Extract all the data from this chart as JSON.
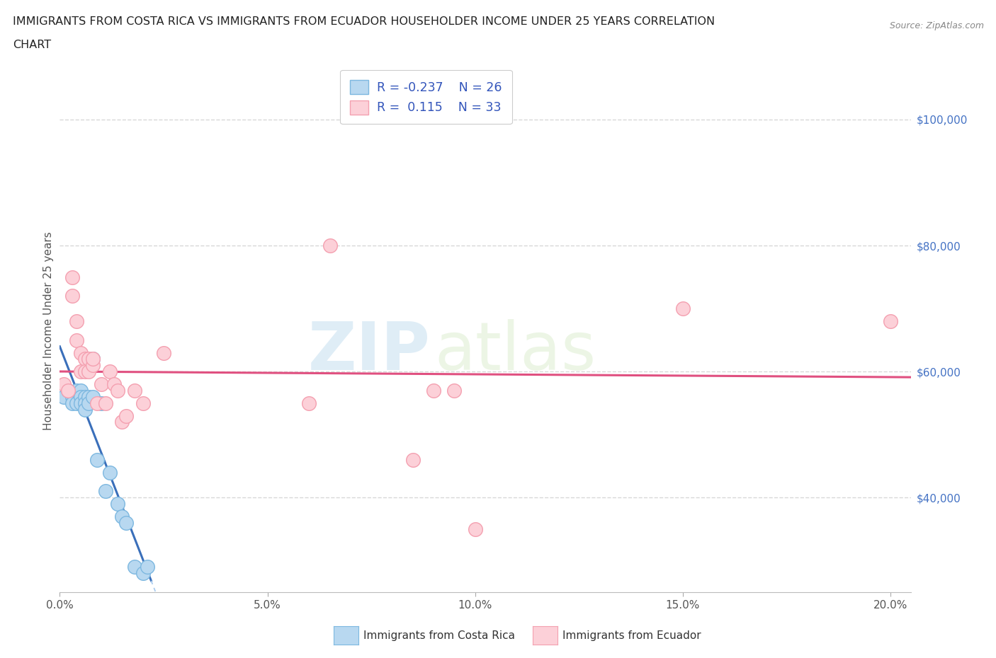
{
  "title_line1": "IMMIGRANTS FROM COSTA RICA VS IMMIGRANTS FROM ECUADOR HOUSEHOLDER INCOME UNDER 25 YEARS CORRELATION",
  "title_line2": "CHART",
  "source_text": "Source: ZipAtlas.com",
  "ylabel": "Householder Income Under 25 years",
  "legend_label_1": "Immigrants from Costa Rica",
  "legend_label_2": "Immigrants from Ecuador",
  "R1": -0.237,
  "N1": 26,
  "R2": 0.115,
  "N2": 33,
  "color_cr_edge": "#7db8e0",
  "color_ec_edge": "#f4a0b0",
  "color_cr_fill": "#b8d8f0",
  "color_ec_fill": "#fcd0d8",
  "line_color_cr": "#3a6fba",
  "line_color_ec": "#e05080",
  "line_color_dash": "#aaccee",
  "xmin": 0.0,
  "xmax": 0.205,
  "ymin": 25000,
  "ymax": 108000,
  "yticks_right": [
    40000,
    60000,
    80000,
    100000
  ],
  "ytick_right_labels": [
    "$40,000",
    "$60,000",
    "$80,000",
    "$100,000"
  ],
  "hgrid_values": [
    40000,
    60000,
    80000,
    100000
  ],
  "xticks": [
    0.0,
    0.05,
    0.1,
    0.15,
    0.2
  ],
  "xtick_labels": [
    "0.0%",
    "5.0%",
    "10.0%",
    "15.0%",
    "20.0%"
  ],
  "grid_color": "#d8d8d8",
  "background_color": "#ffffff",
  "watermark_zip": "ZIP",
  "watermark_atlas": "atlas",
  "costa_rica_x": [
    0.001,
    0.002,
    0.003,
    0.003,
    0.004,
    0.004,
    0.005,
    0.005,
    0.005,
    0.006,
    0.006,
    0.006,
    0.007,
    0.007,
    0.008,
    0.008,
    0.009,
    0.01,
    0.011,
    0.012,
    0.014,
    0.015,
    0.016,
    0.018,
    0.02,
    0.021
  ],
  "costa_rica_y": [
    56000,
    57000,
    56000,
    55000,
    57000,
    55000,
    57000,
    56000,
    55000,
    56000,
    55000,
    54000,
    56000,
    55000,
    62000,
    56000,
    46000,
    55000,
    41000,
    44000,
    39000,
    37000,
    36000,
    29000,
    28000,
    29000
  ],
  "ecuador_x": [
    0.001,
    0.002,
    0.003,
    0.003,
    0.004,
    0.004,
    0.005,
    0.005,
    0.006,
    0.006,
    0.007,
    0.007,
    0.008,
    0.008,
    0.009,
    0.01,
    0.011,
    0.012,
    0.013,
    0.014,
    0.015,
    0.016,
    0.018,
    0.02,
    0.025,
    0.06,
    0.065,
    0.085,
    0.09,
    0.095,
    0.1,
    0.15,
    0.2
  ],
  "ecuador_y": [
    58000,
    57000,
    75000,
    72000,
    68000,
    65000,
    63000,
    60000,
    62000,
    60000,
    62000,
    60000,
    61000,
    62000,
    55000,
    58000,
    55000,
    60000,
    58000,
    57000,
    52000,
    53000,
    57000,
    55000,
    63000,
    55000,
    80000,
    46000,
    57000,
    57000,
    35000,
    70000,
    68000
  ],
  "fig_width": 14.06,
  "fig_height": 9.3,
  "dpi": 100
}
